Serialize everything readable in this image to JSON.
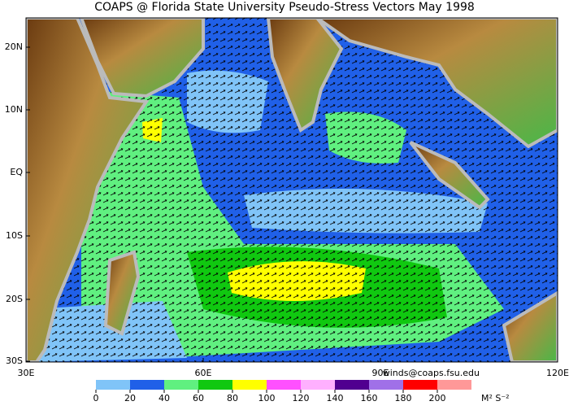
{
  "title": "COAPS @ Florida State University Pseudo-Stress Vectors  May 1998",
  "map": {
    "lat_labels": [
      "20N",
      "10N",
      "EQ",
      "10S",
      "20S",
      "30S"
    ],
    "lon_labels": [
      "30E",
      "60E",
      "90E",
      "120E"
    ]
  },
  "colorbar": {
    "ticks": [
      0,
      20,
      40,
      60,
      80,
      100,
      120,
      140,
      160,
      180,
      200
    ],
    "colors": [
      "#80c4f8",
      "#2060e8",
      "#60f080",
      "#10c810",
      "#ffff00",
      "#ff50ff",
      "#ffb0ff",
      "#500090",
      "#a070e8",
      "#ff0000",
      "#ff9898"
    ],
    "unit": "M² S⁻²"
  },
  "credit": "winds@coaps.fsu.edu"
}
